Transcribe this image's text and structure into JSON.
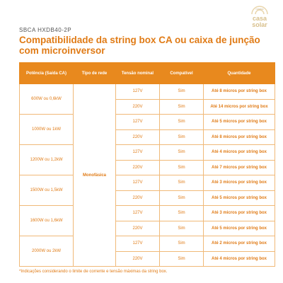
{
  "header": {
    "code": "SBCA HXDB40-2P",
    "logo": {
      "small": "minha",
      "line1": "casa",
      "line2": "solar"
    },
    "title": "Compatibilidade da string box CA ou caixa de junção com microinversor"
  },
  "table": {
    "columns": [
      "Potência (Saída CA)",
      "Tipo de rede",
      "Tensão nominal",
      "Compatível",
      "Quantidade"
    ],
    "network_type": "Monofásica",
    "groups": [
      {
        "power": "600W ou 0,6kW",
        "rows": [
          [
            "127V",
            "Sim",
            "Até 8 micros por string box"
          ],
          [
            "220V",
            "Sim",
            "Até 14 micros por string box"
          ]
        ]
      },
      {
        "power": "1000W ou 1kW",
        "rows": [
          [
            "127V",
            "Sim",
            "Até 5 micros por string box"
          ],
          [
            "220V",
            "Sim",
            "Até 8 micros por string box"
          ]
        ]
      },
      {
        "power": "1200W ou 1,2kW",
        "rows": [
          [
            "127V",
            "Sim",
            "Até 4 micros por string box"
          ],
          [
            "220V",
            "Sim",
            "Até 7 micros por string box"
          ]
        ]
      },
      {
        "power": "1500W ou 1,5kW",
        "rows": [
          [
            "127V",
            "Sim",
            "Até 3 micros por string box"
          ],
          [
            "220V",
            "Sim",
            "Até 5 micros por string box"
          ]
        ]
      },
      {
        "power": "1600W ou 1,6kW",
        "rows": [
          [
            "127V",
            "Sim",
            "Até 3 micros por string box"
          ],
          [
            "220V",
            "Sim",
            "Até 5 micros por string box"
          ]
        ]
      },
      {
        "power": "2000W ou 2kW",
        "rows": [
          [
            "127V",
            "Sim",
            "Até 2 micros por string box"
          ],
          [
            "220V",
            "Sim",
            "Até 4 micros por string box"
          ]
        ]
      }
    ]
  },
  "footnote": "*Indicações considerando o limite de corrente e tensão máximas da string box."
}
